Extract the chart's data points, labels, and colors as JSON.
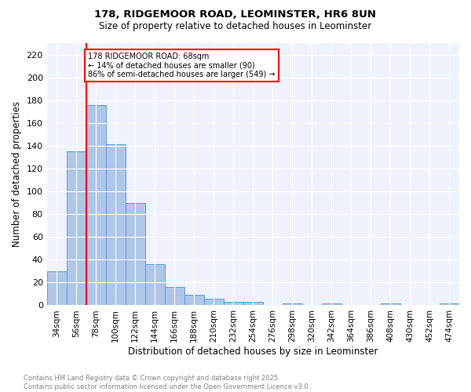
{
  "title": "178, RIDGEMOOR ROAD, LEOMINSTER, HR6 8UN",
  "subtitle": "Size of property relative to detached houses in Leominster",
  "xlabel": "Distribution of detached houses by size in Leominster",
  "ylabel": "Number of detached properties",
  "bins": [
    "34sqm",
    "56sqm",
    "78sqm",
    "100sqm",
    "122sqm",
    "144sqm",
    "166sqm",
    "188sqm",
    "210sqm",
    "232sqm",
    "254sqm",
    "276sqm",
    "298sqm",
    "320sqm",
    "342sqm",
    "364sqm",
    "386sqm",
    "408sqm",
    "430sqm",
    "452sqm",
    "474sqm"
  ],
  "values": [
    30,
    135,
    176,
    141,
    90,
    36,
    16,
    9,
    6,
    3,
    3,
    0,
    2,
    0,
    2,
    0,
    0,
    2,
    0,
    0,
    2
  ],
  "bar_color": "#aec6e8",
  "bar_edge_color": "#5b9bd5",
  "vline_color": "red",
  "annotation_text": "178 RIDGEMOOR ROAD: 68sqm\n← 14% of detached houses are smaller (90)\n86% of semi-detached houses are larger (549) →",
  "annotation_box_color": "white",
  "annotation_box_edge_color": "red",
  "ylim": [
    0,
    230
  ],
  "yticks": [
    0,
    20,
    40,
    60,
    80,
    100,
    120,
    140,
    160,
    180,
    200,
    220
  ],
  "bg_color": "#eef3fb",
  "footer_line1": "Contains HM Land Registry data © Crown copyright and database right 2025.",
  "footer_line2": "Contains public sector information licensed under the Open Government Licence v3.0."
}
